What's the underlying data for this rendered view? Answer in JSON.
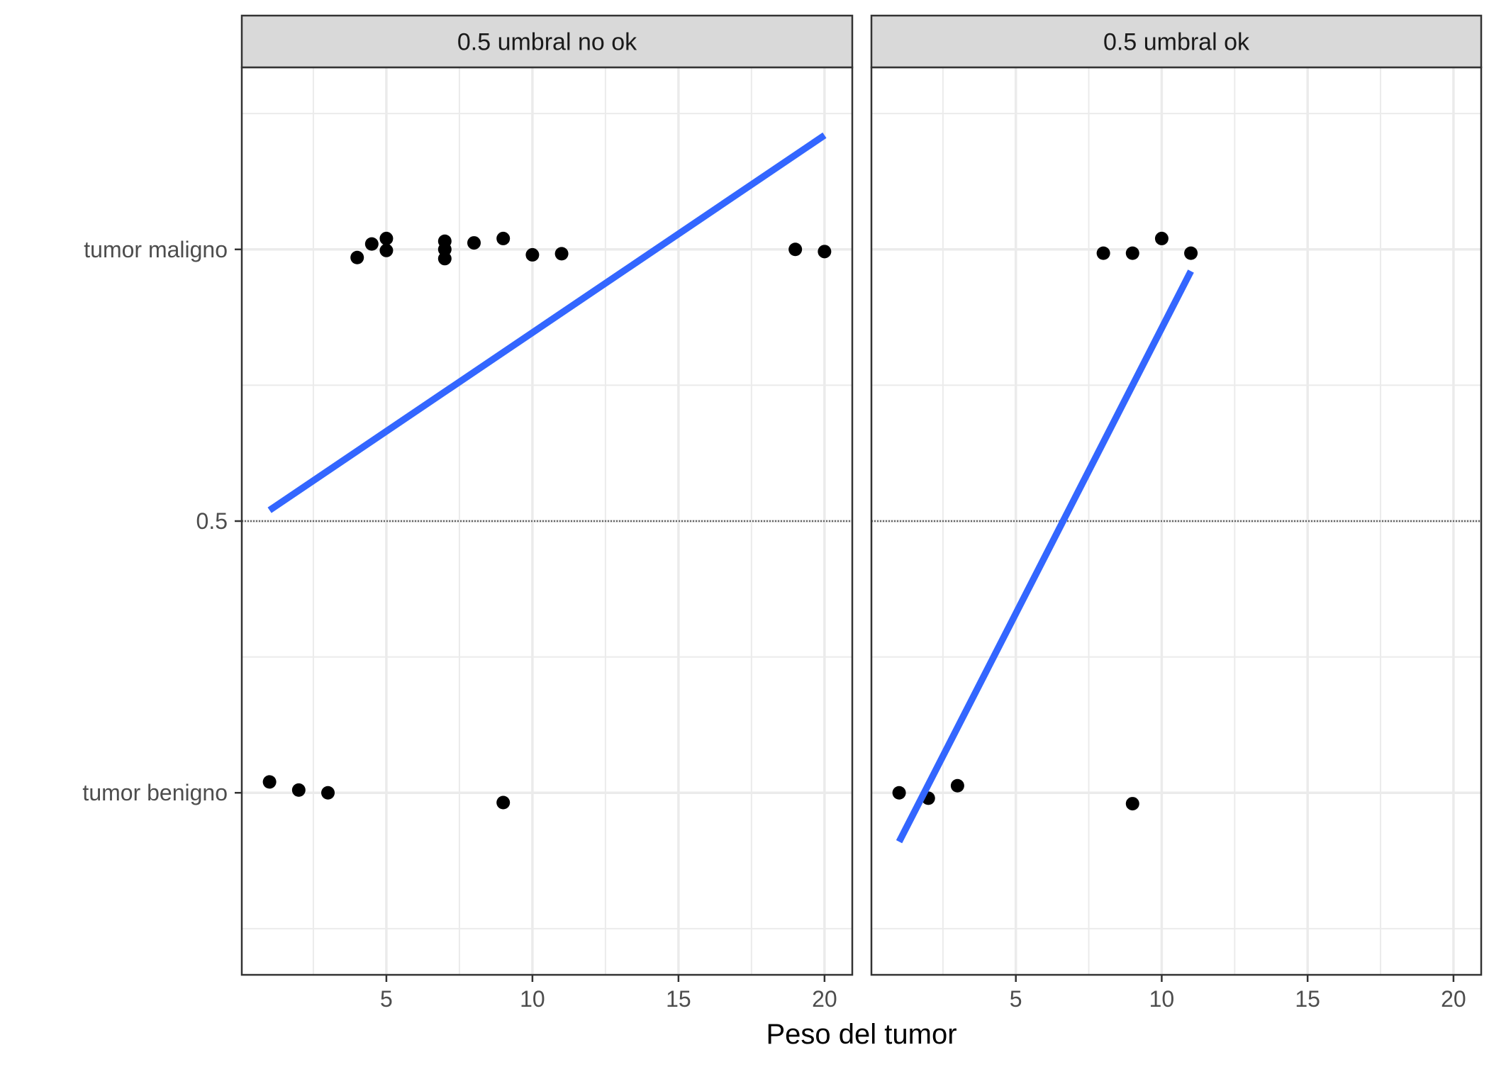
{
  "chart_data": {
    "type": "scatter",
    "xlabel": "Peso del tumor",
    "ylabel": "",
    "xlim": [
      0.05,
      20.95
    ],
    "ylim": [
      -0.335,
      1.335
    ],
    "x_ticks": [
      5,
      10,
      15,
      20
    ],
    "y_ticks": [
      {
        "value": 0,
        "label": "tumor benigno"
      },
      {
        "value": 0.5,
        "label": "0.5"
      },
      {
        "value": 1,
        "label": "tumor maligno"
      }
    ],
    "threshold": 0.5,
    "grid": true,
    "colors": {
      "line": "#3366FF",
      "points": "#000000",
      "threshold": "#666666",
      "strip": "#D9D9D9"
    },
    "panels": [
      {
        "title": "0.5 umbral no ok",
        "points": [
          {
            "x": 1,
            "y": 0.02
          },
          {
            "x": 2,
            "y": 0.005
          },
          {
            "x": 3,
            "y": 0.0
          },
          {
            "x": 9,
            "y": -0.018
          },
          {
            "x": 4,
            "y": 0.985
          },
          {
            "x": 4.5,
            "y": 1.01
          },
          {
            "x": 5,
            "y": 1.02
          },
          {
            "x": 5,
            "y": 0.998
          },
          {
            "x": 7,
            "y": 1.015
          },
          {
            "x": 7,
            "y": 1.0
          },
          {
            "x": 7,
            "y": 0.983
          },
          {
            "x": 8,
            "y": 1.012
          },
          {
            "x": 9,
            "y": 1.02
          },
          {
            "x": 10,
            "y": 0.99
          },
          {
            "x": 11,
            "y": 0.992
          },
          {
            "x": 19,
            "y": 1.0
          },
          {
            "x": 20,
            "y": 0.996
          }
        ],
        "fit_line": {
          "x": [
            1,
            20
          ],
          "y": [
            0.52,
            1.21
          ]
        }
      },
      {
        "title": "0.5 umbral ok",
        "points": [
          {
            "x": 1,
            "y": 0.0
          },
          {
            "x": 2,
            "y": -0.01
          },
          {
            "x": 3,
            "y": 0.013
          },
          {
            "x": 9,
            "y": -0.02
          },
          {
            "x": 8,
            "y": 0.993
          },
          {
            "x": 9,
            "y": 0.993
          },
          {
            "x": 10,
            "y": 1.02
          },
          {
            "x": 11,
            "y": 0.993
          }
        ],
        "fit_line": {
          "x": [
            1,
            11
          ],
          "y": [
            -0.09,
            0.96
          ]
        }
      }
    ]
  }
}
